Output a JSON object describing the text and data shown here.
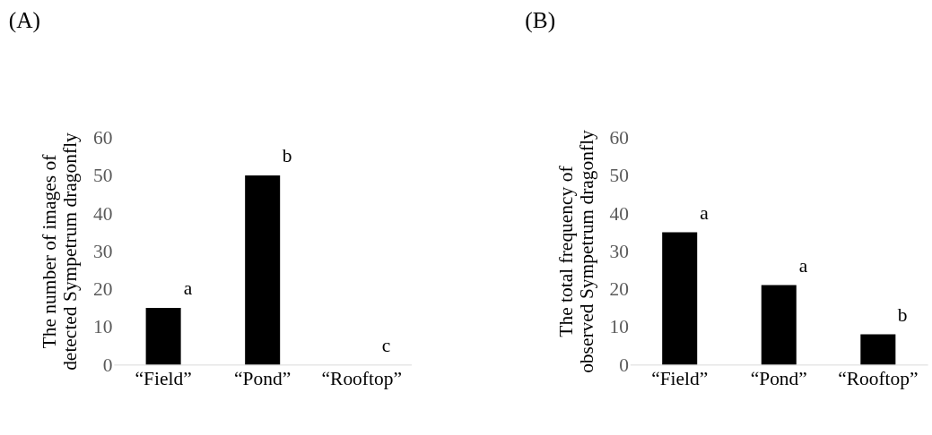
{
  "chart_data": [
    {
      "type": "bar",
      "title": "(A)",
      "ylabel": "The number of images of\ndetected Sympetrum dragonfly",
      "categories": [
        "“Field”",
        "“Pond”",
        "“Rooftop”"
      ],
      "values": [
        15,
        50,
        0
      ],
      "color": "#000000",
      "ylim": [
        0,
        60
      ],
      "yticks": [
        0,
        10,
        20,
        30,
        40,
        50,
        60
      ],
      "grid": false,
      "annotations": [
        {
          "text": "a",
          "x": "“Field”",
          "y": 15
        },
        {
          "text": "b",
          "x": "“Pond”",
          "y": 50
        },
        {
          "text": "c",
          "x": "“Rooftop”",
          "y": 0
        }
      ]
    },
    {
      "type": "bar",
      "title": "(B)",
      "ylabel": "The total frequency of\nobserved Sympetrum dragonfly",
      "categories": [
        "“Field”",
        "“Pond”",
        "“Rooftop”"
      ],
      "values": [
        35,
        21,
        8
      ],
      "color": "#000000",
      "ylim": [
        0,
        60
      ],
      "yticks": [
        0,
        10,
        20,
        30,
        40,
        50,
        60
      ],
      "grid": false,
      "annotations": [
        {
          "text": "a",
          "x": "“Field”",
          "y": 35
        },
        {
          "text": "a",
          "x": "“Pond”",
          "y": 21
        },
        {
          "text": "b",
          "x": "“Rooftop”",
          "y": 8
        }
      ]
    }
  ]
}
